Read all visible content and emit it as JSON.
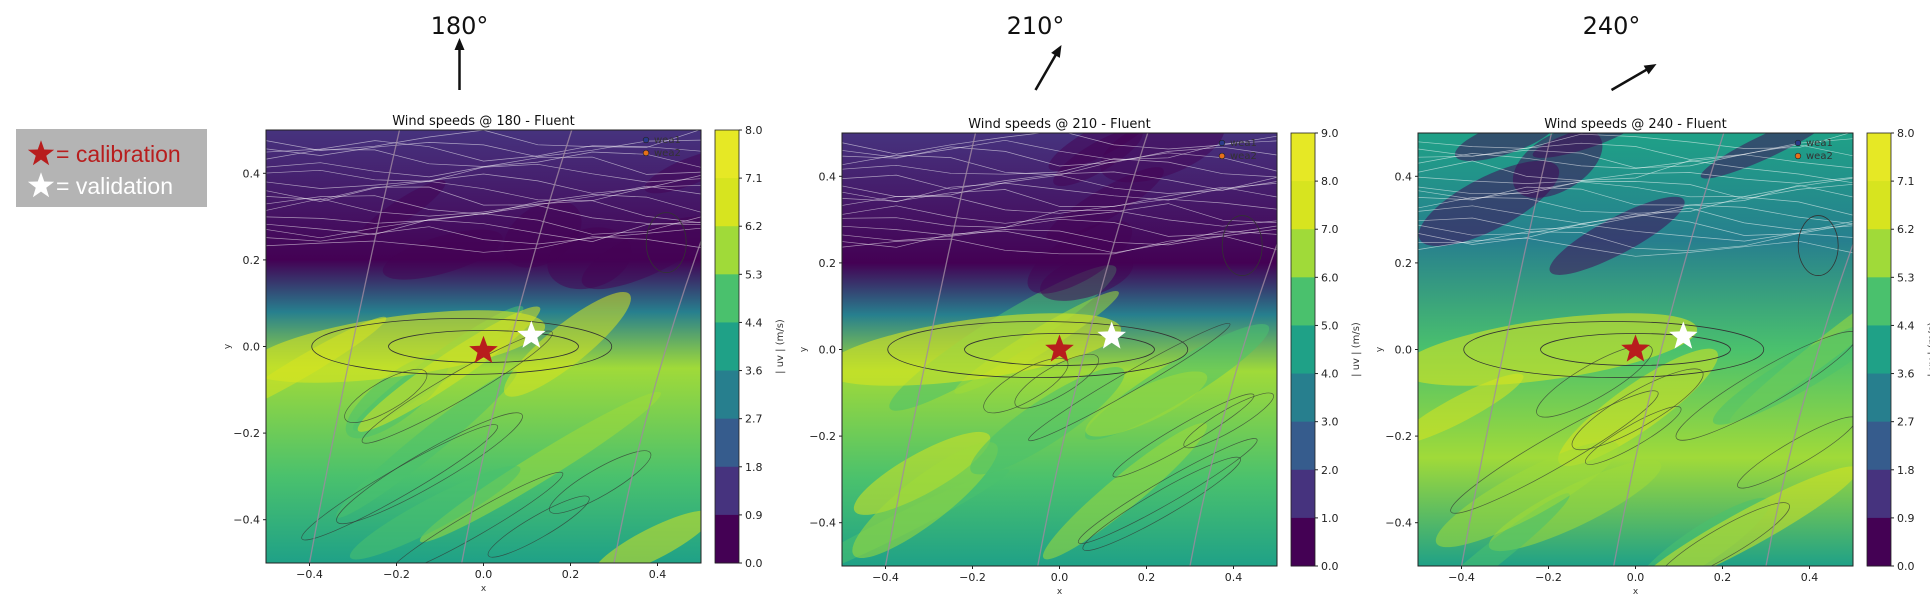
{
  "legend": {
    "calibration_label": "= calibration",
    "validation_label": "= validation",
    "calibration_color": "#b81d1d",
    "validation_color": "#ffffff"
  },
  "colormap": [
    "#440154",
    "#46337e",
    "#365c8d",
    "#277f8e",
    "#1fa187",
    "#4ac16d",
    "#a0da39",
    "#d7e41f",
    "#e6e825"
  ],
  "chart_data": [
    {
      "type": "heatmap",
      "direction_label": "180°",
      "direction_deg": 180,
      "title": "Wind speeds @ 180 - Fluent",
      "xlabel": "x",
      "ylabel": "y",
      "xlim": [
        -0.5,
        0.5
      ],
      "ylim": [
        -0.5,
        0.5
      ],
      "xticks": [
        "−0.4",
        "−0.2",
        "0.0",
        "0.2",
        "0.4"
      ],
      "yticks": [
        "0.4",
        "0.2",
        "0.0",
        "−0.2",
        "−0.4"
      ],
      "colorbar_label": "| uv | (m/s)",
      "colorbar_ticks": [
        "8.0",
        "7.1",
        "6.2",
        "5.3",
        "4.4",
        "3.6",
        "2.7",
        "1.8",
        "0.9",
        "0.0"
      ],
      "legend": [
        "wea1",
        "wea2"
      ],
      "markers": {
        "calibration": {
          "x": 0.0,
          "y": -0.01
        },
        "validation": {
          "x": 0.11,
          "y": 0.025
        }
      }
    },
    {
      "type": "heatmap",
      "direction_label": "210°",
      "direction_deg": 210,
      "title": "Wind speeds @ 210 - Fluent",
      "xlabel": "x",
      "ylabel": "y",
      "xlim": [
        -0.5,
        0.5
      ],
      "ylim": [
        -0.5,
        0.5
      ],
      "xticks": [
        "−0.4",
        "−0.2",
        "0.0",
        "0.2",
        "0.4"
      ],
      "yticks": [
        "0.4",
        "0.2",
        "0.0",
        "−0.2",
        "−0.4"
      ],
      "colorbar_label": "| uv | (m/s)",
      "colorbar_ticks": [
        "9.0",
        "8.0",
        "7.0",
        "6.0",
        "5.0",
        "4.0",
        "3.0",
        "2.0",
        "1.0",
        "0.0"
      ],
      "legend": [
        "wea1",
        "wea2"
      ],
      "markers": {
        "calibration": {
          "x": 0.0,
          "y": 0.0
        },
        "validation": {
          "x": 0.12,
          "y": 0.03
        }
      }
    },
    {
      "type": "heatmap",
      "direction_label": "240°",
      "direction_deg": 240,
      "title": "Wind speeds @ 240 - Fluent",
      "xlabel": "x",
      "ylabel": "y",
      "xlim": [
        -0.5,
        0.5
      ],
      "ylim": [
        -0.5,
        0.5
      ],
      "xticks": [
        "−0.4",
        "−0.2",
        "0.0",
        "0.2",
        "0.4"
      ],
      "yticks": [
        "0.4",
        "0.2",
        "0.0",
        "−0.2",
        "−0.4"
      ],
      "colorbar_label": "| uv | (m/s)",
      "colorbar_ticks": [
        "8.0",
        "7.1",
        "6.2",
        "5.3",
        "4.4",
        "3.6",
        "2.7",
        "1.8",
        "0.9",
        "0.0"
      ],
      "legend": [
        "wea1",
        "wea2"
      ],
      "markers": {
        "calibration": {
          "x": 0.0,
          "y": 0.0
        },
        "validation": {
          "x": 0.11,
          "y": 0.03
        }
      }
    }
  ]
}
